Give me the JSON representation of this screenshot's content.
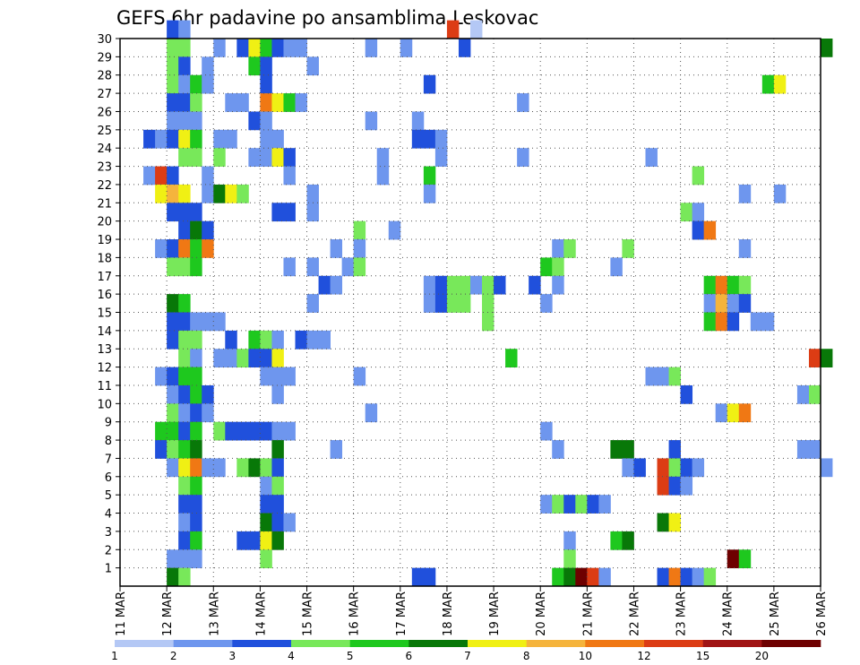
{
  "chart_data": {
    "type": "heatmap",
    "title": "GEFS 6hr padavine po ansamblima Leskovac",
    "xlabel": "",
    "ylabel": "",
    "x_tick_labels": [
      "11 MAR",
      "12 MAR",
      "13 MAR",
      "14 MAR",
      "15 MAR",
      "16 MAR",
      "17 MAR",
      "18 MAR",
      "19 MAR",
      "20 MAR",
      "21 MAR",
      "22 MAR",
      "23 MAR",
      "24 MAR",
      "25 MAR",
      "26 MAR"
    ],
    "y_tick_labels": [
      "1",
      "2",
      "3",
      "4",
      "5",
      "6",
      "7",
      "8",
      "9",
      "10",
      "11",
      "12",
      "13",
      "14",
      "15",
      "16",
      "17",
      "18",
      "19",
      "20",
      "21",
      "22",
      "23",
      "24",
      "25",
      "26",
      "27",
      "28",
      "29",
      "30"
    ],
    "xlim": [
      0,
      60
    ],
    "ylim": [
      0,
      30
    ],
    "x_step_hours": 6,
    "grid": true,
    "legend_placement": "bottom",
    "colorbar": {
      "labels": [
        "1",
        "2",
        "3",
        "4",
        "5",
        "6",
        "7",
        "8",
        "10",
        "12",
        "15",
        "20"
      ],
      "colors": [
        "#b4c8f5",
        "#6e96ee",
        "#2050dc",
        "#78e85a",
        "#1ec81e",
        "#087808",
        "#f0f014",
        "#f5b43c",
        "#f07814",
        "#dc3c14",
        "#a01414",
        "#6e0000"
      ]
    },
    "cells": [
      [
        4,
        30,
        2
      ],
      [
        5,
        30,
        1
      ],
      [
        28,
        30,
        9
      ],
      [
        5,
        29,
        3
      ],
      [
        4,
        29,
        3
      ],
      [
        8,
        29,
        1
      ],
      [
        10,
        29,
        2
      ],
      [
        11,
        29,
        6
      ],
      [
        12,
        29,
        4
      ],
      [
        13,
        29,
        2
      ],
      [
        14,
        29,
        1
      ],
      [
        15,
        29,
        1
      ],
      [
        21,
        29,
        1
      ],
      [
        24,
        29,
        1
      ],
      [
        29,
        29,
        2
      ],
      [
        30,
        30,
        0
      ],
      [
        60,
        29,
        5
      ],
      [
        4,
        28,
        3
      ],
      [
        5,
        28,
        2
      ],
      [
        7,
        28,
        1
      ],
      [
        11,
        28,
        4
      ],
      [
        12,
        28,
        2
      ],
      [
        16,
        28,
        1
      ],
      [
        4,
        27,
        3
      ],
      [
        5,
        27,
        1
      ],
      [
        6,
        27,
        4
      ],
      [
        7,
        27,
        1
      ],
      [
        26,
        27,
        2
      ],
      [
        12,
        27,
        2
      ],
      [
        55,
        27,
        4
      ],
      [
        56,
        27,
        6
      ],
      [
        4,
        26,
        2
      ],
      [
        5,
        26,
        2
      ],
      [
        6,
        26,
        3
      ],
      [
        9,
        26,
        1
      ],
      [
        10,
        26,
        1
      ],
      [
        12,
        26,
        8
      ],
      [
        13,
        26,
        6
      ],
      [
        14,
        26,
        4
      ],
      [
        15,
        26,
        1
      ],
      [
        34,
        26,
        1
      ],
      [
        4,
        25,
        1
      ],
      [
        5,
        25,
        1
      ],
      [
        6,
        25,
        1
      ],
      [
        11,
        25,
        2
      ],
      [
        12,
        25,
        1
      ],
      [
        21,
        25,
        1
      ],
      [
        25,
        25,
        1
      ],
      [
        2,
        24,
        2
      ],
      [
        3,
        24,
        1
      ],
      [
        4,
        24,
        2
      ],
      [
        5,
        24,
        6
      ],
      [
        6,
        24,
        4
      ],
      [
        8,
        24,
        1
      ],
      [
        9,
        24,
        1
      ],
      [
        12,
        24,
        1
      ],
      [
        13,
        24,
        1
      ],
      [
        25,
        24,
        2
      ],
      [
        26,
        24,
        2
      ],
      [
        27,
        24,
        1
      ],
      [
        5,
        23,
        3
      ],
      [
        6,
        23,
        3
      ],
      [
        8,
        23,
        3
      ],
      [
        11,
        23,
        1
      ],
      [
        12,
        23,
        1
      ],
      [
        13,
        23,
        6
      ],
      [
        14,
        23,
        2
      ],
      [
        22,
        23,
        1
      ],
      [
        27,
        23,
        1
      ],
      [
        34,
        23,
        1
      ],
      [
        45,
        23,
        1
      ],
      [
        2,
        22,
        1
      ],
      [
        3,
        22,
        9
      ],
      [
        4,
        22,
        2
      ],
      [
        7,
        22,
        1
      ],
      [
        14,
        22,
        1
      ],
      [
        22,
        22,
        1
      ],
      [
        26,
        22,
        4
      ],
      [
        49,
        22,
        3
      ],
      [
        3,
        21,
        6
      ],
      [
        4,
        21,
        7
      ],
      [
        5,
        21,
        6
      ],
      [
        7,
        21,
        1
      ],
      [
        8,
        21,
        5
      ],
      [
        9,
        21,
        6
      ],
      [
        10,
        21,
        3
      ],
      [
        16,
        21,
        1
      ],
      [
        26,
        21,
        1
      ],
      [
        53,
        21,
        1
      ],
      [
        56,
        21,
        1
      ],
      [
        4,
        20,
        2
      ],
      [
        5,
        20,
        2
      ],
      [
        6,
        20,
        2
      ],
      [
        13,
        20,
        2
      ],
      [
        14,
        20,
        2
      ],
      [
        16,
        20,
        1
      ],
      [
        48,
        20,
        3
      ],
      [
        49,
        20,
        1
      ],
      [
        5,
        19,
        2
      ],
      [
        6,
        19,
        5
      ],
      [
        7,
        19,
        2
      ],
      [
        20,
        19,
        3
      ],
      [
        23,
        19,
        1
      ],
      [
        49,
        19,
        2
      ],
      [
        50,
        19,
        8
      ],
      [
        3,
        18,
        1
      ],
      [
        4,
        18,
        2
      ],
      [
        5,
        18,
        8
      ],
      [
        6,
        18,
        4
      ],
      [
        7,
        18,
        8
      ],
      [
        18,
        18,
        1
      ],
      [
        20,
        18,
        1
      ],
      [
        37,
        18,
        1
      ],
      [
        38,
        18,
        3
      ],
      [
        43,
        18,
        3
      ],
      [
        53,
        18,
        1
      ],
      [
        4,
        17,
        3
      ],
      [
        5,
        17,
        3
      ],
      [
        6,
        17,
        4
      ],
      [
        14,
        17,
        1
      ],
      [
        16,
        17,
        1
      ],
      [
        19,
        17,
        1
      ],
      [
        20,
        17,
        3
      ],
      [
        36,
        17,
        4
      ],
      [
        37,
        17,
        3
      ],
      [
        42,
        17,
        1
      ],
      [
        17,
        16,
        2
      ],
      [
        18,
        16,
        1
      ],
      [
        26,
        16,
        1
      ],
      [
        27,
        16,
        2
      ],
      [
        28,
        16,
        3
      ],
      [
        29,
        16,
        3
      ],
      [
        30,
        16,
        1
      ],
      [
        31,
        16,
        3
      ],
      [
        32,
        16,
        2
      ],
      [
        35,
        16,
        2
      ],
      [
        37,
        16,
        1
      ],
      [
        50,
        16,
        4
      ],
      [
        51,
        16,
        8
      ],
      [
        52,
        16,
        4
      ],
      [
        53,
        16,
        3
      ],
      [
        4,
        15,
        5
      ],
      [
        5,
        15,
        4
      ],
      [
        16,
        15,
        1
      ],
      [
        26,
        15,
        1
      ],
      [
        27,
        15,
        2
      ],
      [
        28,
        15,
        3
      ],
      [
        29,
        15,
        3
      ],
      [
        31,
        15,
        3
      ],
      [
        36,
        15,
        1
      ],
      [
        50,
        15,
        1
      ],
      [
        51,
        15,
        7
      ],
      [
        52,
        15,
        1
      ],
      [
        53,
        15,
        2
      ],
      [
        4,
        14,
        2
      ],
      [
        5,
        14,
        2
      ],
      [
        6,
        14,
        1
      ],
      [
        7,
        14,
        1
      ],
      [
        8,
        14,
        1
      ],
      [
        31,
        14,
        3
      ],
      [
        50,
        14,
        4
      ],
      [
        51,
        14,
        8
      ],
      [
        52,
        14,
        2
      ],
      [
        54,
        14,
        1
      ],
      [
        55,
        14,
        1
      ],
      [
        4,
        13,
        2
      ],
      [
        5,
        13,
        3
      ],
      [
        6,
        13,
        3
      ],
      [
        9,
        13,
        2
      ],
      [
        11,
        13,
        4
      ],
      [
        12,
        13,
        3
      ],
      [
        13,
        13,
        1
      ],
      [
        15,
        13,
        2
      ],
      [
        16,
        13,
        1
      ],
      [
        17,
        13,
        1
      ],
      [
        5,
        12,
        3
      ],
      [
        6,
        12,
        1
      ],
      [
        8,
        12,
        1
      ],
      [
        9,
        12,
        1
      ],
      [
        10,
        12,
        3
      ],
      [
        11,
        12,
        2
      ],
      [
        12,
        12,
        2
      ],
      [
        13,
        12,
        6
      ],
      [
        33,
        12,
        4
      ],
      [
        59,
        12,
        9
      ],
      [
        60,
        12,
        5
      ],
      [
        3,
        11,
        1
      ],
      [
        4,
        11,
        2
      ],
      [
        5,
        11,
        4
      ],
      [
        6,
        11,
        4
      ],
      [
        12,
        11,
        1
      ],
      [
        13,
        11,
        1
      ],
      [
        14,
        11,
        1
      ],
      [
        20,
        11,
        1
      ],
      [
        45,
        11,
        1
      ],
      [
        46,
        11,
        1
      ],
      [
        47,
        11,
        3
      ],
      [
        4,
        10,
        1
      ],
      [
        5,
        10,
        2
      ],
      [
        6,
        10,
        4
      ],
      [
        7,
        10,
        2
      ],
      [
        13,
        10,
        1
      ],
      [
        48,
        10,
        2
      ],
      [
        58,
        10,
        1
      ],
      [
        59,
        10,
        3
      ],
      [
        4,
        9,
        3
      ],
      [
        5,
        9,
        1
      ],
      [
        6,
        9,
        2
      ],
      [
        7,
        9,
        1
      ],
      [
        21,
        9,
        1
      ],
      [
        51,
        9,
        1
      ],
      [
        52,
        9,
        6
      ],
      [
        53,
        9,
        8
      ],
      [
        3,
        8,
        4
      ],
      [
        4,
        8,
        4
      ],
      [
        5,
        8,
        2
      ],
      [
        6,
        8,
        4
      ],
      [
        8,
        8,
        3
      ],
      [
        9,
        8,
        2
      ],
      [
        10,
        8,
        2
      ],
      [
        11,
        8,
        2
      ],
      [
        12,
        8,
        2
      ],
      [
        13,
        8,
        1
      ],
      [
        14,
        8,
        1
      ],
      [
        36,
        8,
        1
      ],
      [
        3,
        7,
        2
      ],
      [
        4,
        7,
        3
      ],
      [
        5,
        7,
        4
      ],
      [
        6,
        7,
        5
      ],
      [
        13,
        7,
        5
      ],
      [
        18,
        7,
        1
      ],
      [
        37,
        7,
        1
      ],
      [
        42,
        7,
        5
      ],
      [
        43,
        7,
        5
      ],
      [
        47,
        7,
        2
      ],
      [
        58,
        7,
        1
      ],
      [
        59,
        7,
        1
      ],
      [
        4,
        6,
        1
      ],
      [
        5,
        6,
        6
      ],
      [
        6,
        6,
        8
      ],
      [
        7,
        6,
        1
      ],
      [
        8,
        6,
        1
      ],
      [
        10,
        6,
        3
      ],
      [
        11,
        6,
        5
      ],
      [
        12,
        6,
        3
      ],
      [
        13,
        6,
        2
      ],
      [
        43,
        6,
        1
      ],
      [
        44,
        6,
        2
      ],
      [
        46,
        6,
        9
      ],
      [
        47,
        6,
        3
      ],
      [
        48,
        6,
        2
      ],
      [
        49,
        6,
        1
      ],
      [
        60,
        6,
        1
      ],
      [
        5,
        5,
        3
      ],
      [
        6,
        5,
        4
      ],
      [
        12,
        5,
        1
      ],
      [
        13,
        5,
        3
      ],
      [
        46,
        5,
        9
      ],
      [
        47,
        5,
        2
      ],
      [
        48,
        5,
        1
      ],
      [
        5,
        4,
        2
      ],
      [
        6,
        4,
        2
      ],
      [
        12,
        4,
        2
      ],
      [
        13,
        4,
        2
      ],
      [
        36,
        4,
        1
      ],
      [
        37,
        4,
        3
      ],
      [
        38,
        4,
        2
      ],
      [
        39,
        4,
        3
      ],
      [
        40,
        4,
        2
      ],
      [
        41,
        4,
        1
      ],
      [
        5,
        3,
        1
      ],
      [
        6,
        3,
        2
      ],
      [
        12,
        3,
        5
      ],
      [
        13,
        3,
        2
      ],
      [
        14,
        3,
        1
      ],
      [
        46,
        3,
        5
      ],
      [
        47,
        3,
        6
      ],
      [
        5,
        2,
        2
      ],
      [
        6,
        2,
        4
      ],
      [
        10,
        2,
        2
      ],
      [
        11,
        2,
        2
      ],
      [
        12,
        2,
        6
      ],
      [
        13,
        2,
        5
      ],
      [
        38,
        2,
        1
      ],
      [
        42,
        2,
        4
      ],
      [
        43,
        2,
        5
      ],
      [
        4,
        1,
        1
      ],
      [
        5,
        1,
        1
      ],
      [
        6,
        1,
        1
      ],
      [
        12,
        1,
        3
      ],
      [
        38,
        1,
        3
      ],
      [
        52,
        1,
        11
      ],
      [
        53,
        1,
        4
      ],
      [
        4,
        0,
        5
      ],
      [
        5,
        0,
        3
      ],
      [
        25,
        0,
        2
      ],
      [
        26,
        0,
        2
      ],
      [
        37,
        0,
        4
      ],
      [
        38,
        0,
        5
      ],
      [
        39,
        0,
        11
      ],
      [
        40,
        0,
        9
      ],
      [
        41,
        0,
        1
      ],
      [
        46,
        0,
        2
      ],
      [
        47,
        0,
        8
      ],
      [
        48,
        0,
        2
      ],
      [
        49,
        0,
        1
      ],
      [
        50,
        0,
        3
      ]
    ]
  }
}
